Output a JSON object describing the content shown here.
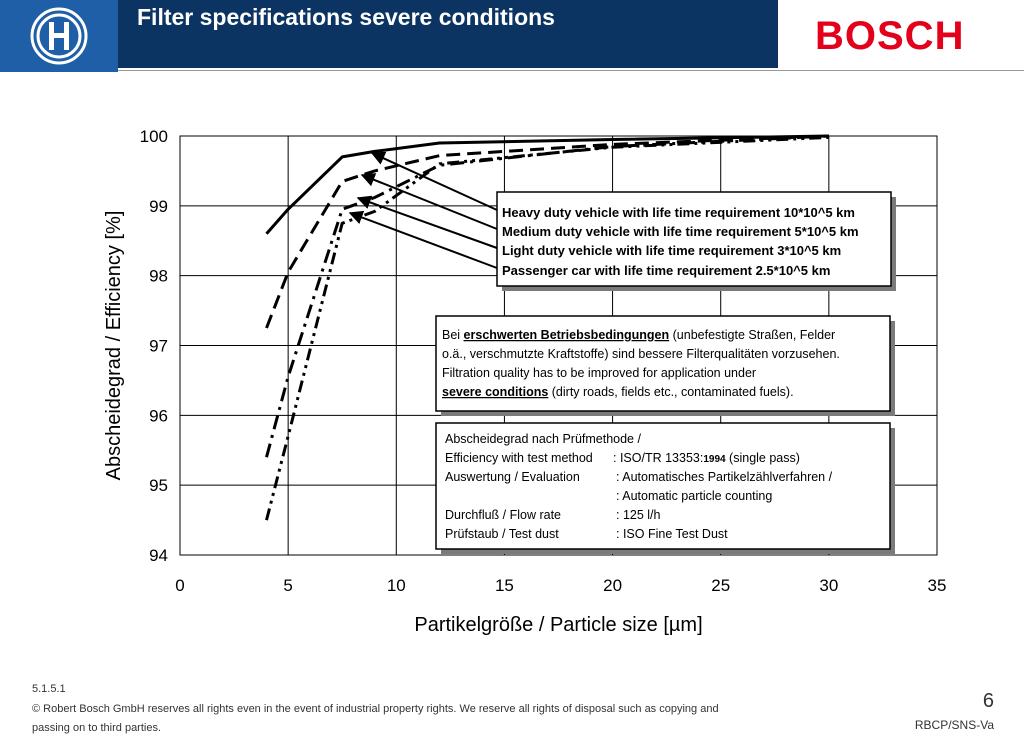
{
  "header": {
    "title": "Filter specifications severe conditions",
    "brand": "BOSCH"
  },
  "chart_data": {
    "type": "line",
    "xlabel": "Partikelgröße / Particle size [µm]",
    "ylabel": "Abscheidegrad / Efficiency [%]",
    "xlim": [
      0,
      35
    ],
    "ylim": [
      94,
      100
    ],
    "xticks": [
      0,
      5,
      10,
      15,
      20,
      25,
      30,
      35
    ],
    "yticks": [
      94,
      95,
      96,
      97,
      98,
      99,
      100
    ],
    "grid": true,
    "series": [
      {
        "name": "Heavy duty vehicle with life time requirement 10*10^5 km",
        "style": "solid",
        "x": [
          4,
          5,
          7.5,
          9,
          12,
          20,
          30
        ],
        "y": [
          98.6,
          98.95,
          99.7,
          99.78,
          99.9,
          99.95,
          100
        ]
      },
      {
        "name": "Medium duty vehicle with life time requirement 5*10^5 km",
        "style": "dash",
        "x": [
          4,
          5,
          7.5,
          9,
          12,
          20,
          30
        ],
        "y": [
          97.25,
          98.05,
          99.35,
          99.5,
          99.72,
          99.88,
          100
        ]
      },
      {
        "name": "Light duty vehicle with life time requirement 3*10^5 km",
        "style": "dashdot",
        "x": [
          4,
          5,
          7.5,
          9,
          12,
          20,
          30
        ],
        "y": [
          95.4,
          96.55,
          98.95,
          99.12,
          99.58,
          99.85,
          100
        ]
      },
      {
        "name": "Passenger car with life time requirement 2.5*10^5 km",
        "style": "dashdotdot",
        "x": [
          4,
          5,
          7.5,
          9,
          12,
          20,
          30
        ],
        "y": [
          94.5,
          95.7,
          98.75,
          98.92,
          99.6,
          99.84,
          99.98
        ]
      }
    ],
    "legend_lines": [
      "Heavy duty vehicle with life time requirement 10*10^5 km",
      "Medium duty vehicle with life time requirement 5*10^5 km",
      "Light duty vehicle with life time requirement 3*10^5 km",
      "Passenger car with life time requirement 2.5*10^5 km"
    ],
    "note": {
      "line1_pre": "Bei ",
      "line1_bold": "erschwerten Betriebsbedingungen",
      "line1_post": " (unbefestigte Straßen, Felder",
      "line2": "o.ä., verschmutzte Kraftstoffe) sind bessere Filterqualitäten vorzusehen.",
      "line3": "Filtration quality has to be improved for application under",
      "line4_bold": "severe conditions",
      "line4_post": " (dirty roads, fields etc., contaminated fuels)."
    },
    "method": {
      "row1": "Abscheidegrad nach Prüfmethode /",
      "row2_label": "Efficiency with test method",
      "row2_value": ": ISO/TR 13353:",
      "row2_year": "1994",
      "row2_suffix": " (single pass)",
      "row3_label": "Auswertung / Evaluation",
      "row3_value": ": Automatisches Partikelzählverfahren /",
      "row4_value": ": Automatic particle counting",
      "row5_label": "Durchfluß / Flow rate",
      "row5_value": ": 125 l/h",
      "row6_label": "Prüfstaub / Test dust",
      "row6_value": ": ISO Fine Test Dust"
    }
  },
  "footer": {
    "version": "5.1.5.1",
    "copyright": "© Robert Bosch GmbH reserves all rights even in the event of industrial property rights. We reserve all rights of disposal such as copying and passing on to third parties.",
    "page": "6",
    "dept": "RBCP/SNS-Va"
  },
  "colors": {
    "title_bar": "#0c3463",
    "logo_bg": "#1f5fa8",
    "brand_red": "#e2001a"
  }
}
